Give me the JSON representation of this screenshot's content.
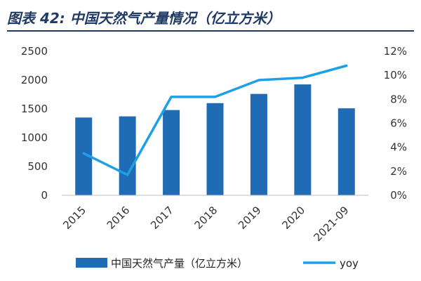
{
  "header": {
    "title_prefix": "图表 42:",
    "title": "中国天然气产量情况（亿立方米）"
  },
  "chart_data": {
    "type": "bar",
    "title": "中国天然气产量情况（亿立方米）",
    "categories": [
      "2015",
      "2016",
      "2017",
      "2018",
      "2019",
      "2020",
      "2021-09"
    ],
    "series": [
      {
        "name": "中国天然气产量（亿立方米）",
        "type": "bar",
        "axis": "left",
        "values": [
          1350,
          1370,
          1480,
          1600,
          1760,
          1925,
          1510
        ],
        "color": "#1f6cb5"
      },
      {
        "name": "yoy",
        "type": "line",
        "axis": "right",
        "values": [
          3.5,
          1.7,
          8.2,
          8.2,
          9.6,
          9.8,
          10.8
        ],
        "color": "#1ea0e6"
      }
    ],
    "y_left": {
      "min": 0,
      "max": 2500,
      "ticks": [
        "0",
        "500",
        "1000",
        "1500",
        "2000",
        "2500"
      ]
    },
    "y_right": {
      "min": 0,
      "max": 12,
      "ticks": [
        "0%",
        "2%",
        "4%",
        "6%",
        "8%",
        "10%",
        "12%"
      ]
    },
    "grid": false,
    "legend_placement": "bottom",
    "xlabel": "",
    "ylabel": ""
  }
}
